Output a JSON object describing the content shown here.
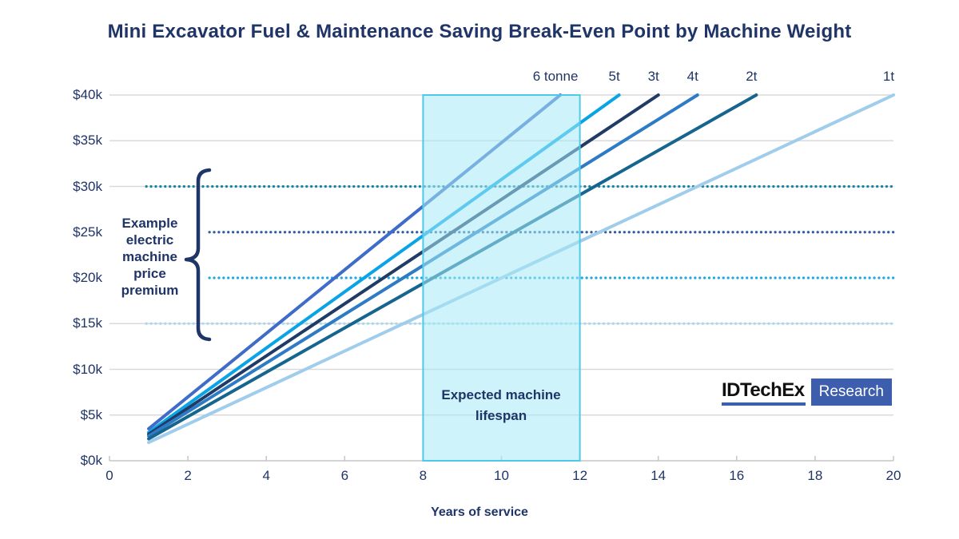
{
  "chart_data": {
    "type": "line",
    "title": "Mini Excavator Fuel & Maintenance Saving Break-Even Point by Machine Weight",
    "xlabel": "Years of service",
    "ylabel": "",
    "xlim": [
      0,
      20
    ],
    "ylim_k": [
      0,
      40
    ],
    "grid": "horizontal-only",
    "legend_position": "labels-above-lines",
    "x_ticks": [
      0,
      2,
      4,
      6,
      8,
      10,
      12,
      14,
      16,
      18,
      20
    ],
    "y_ticks": [
      {
        "value_k": 40,
        "label": "$40k"
      },
      {
        "value_k": 35,
        "label": "$35k"
      },
      {
        "value_k": 30,
        "label": "$30k"
      },
      {
        "value_k": 25,
        "label": "$25k"
      },
      {
        "value_k": 20,
        "label": "$20k"
      },
      {
        "value_k": 15,
        "label": "$15k"
      },
      {
        "value_k": 10,
        "label": "$10k"
      },
      {
        "value_k": 5,
        "label": "$5k"
      },
      {
        "value_k": 0,
        "label": "$0k"
      }
    ],
    "gridline_values_k": [
      5,
      10,
      15,
      30,
      35,
      40
    ],
    "series": [
      {
        "name": "6 tonne",
        "color": "#3E6CC8",
        "points_year_k": [
          [
            1,
            3.5
          ],
          [
            11.5,
            40
          ]
        ],
        "approx_saving_k_per_year": 3.5
      },
      {
        "name": "5t",
        "color": "#0AA4E6",
        "points_year_k": [
          [
            1,
            3.1
          ],
          [
            13.0,
            40
          ]
        ],
        "approx_saving_k_per_year": 3.1
      },
      {
        "name": "3t",
        "color": "#1F3B66",
        "points_year_k": [
          [
            1,
            2.9
          ],
          [
            14.0,
            40
          ]
        ],
        "approx_saving_k_per_year": 2.9
      },
      {
        "name": "4t",
        "color": "#2C7BC4",
        "points_year_k": [
          [
            1,
            2.7
          ],
          [
            15.0,
            40
          ]
        ],
        "approx_saving_k_per_year": 2.7
      },
      {
        "name": "2t",
        "color": "#15658E",
        "points_year_k": [
          [
            1,
            2.4
          ],
          [
            16.5,
            40
          ]
        ],
        "approx_saving_k_per_year": 2.4
      },
      {
        "name": "1t",
        "color": "#9FCDEB",
        "points_year_k": [
          [
            1,
            2.0
          ],
          [
            20.0,
            40
          ]
        ],
        "approx_saving_k_per_year": 2.0
      }
    ],
    "price_premium_lines": [
      {
        "value_k": 30,
        "color": "#1584A5",
        "start_year": 0.94
      },
      {
        "value_k": 25,
        "color": "#2F5EA4",
        "start_year": 2.55
      },
      {
        "value_k": 20,
        "color": "#1FA8E0",
        "start_year": 2.55
      },
      {
        "value_k": 15,
        "color": "#A9D7F0",
        "start_year": 0.94
      }
    ],
    "lifespan_band": {
      "start_year": 8,
      "end_year": 12,
      "fill": "rgba(166,233,246,0.55)",
      "border": "#4FC9E8"
    }
  },
  "annotations": {
    "price_premium": "Example electric machine price premium",
    "lifespan": "Expected machine lifespan"
  },
  "logo": {
    "brand": "IDTechEx",
    "sub": "Research",
    "accent": "#3D5EAC"
  },
  "colors": {
    "text_navy": "#1F3467",
    "gridline": "#DADADA",
    "axis": "#C6C6C6"
  }
}
